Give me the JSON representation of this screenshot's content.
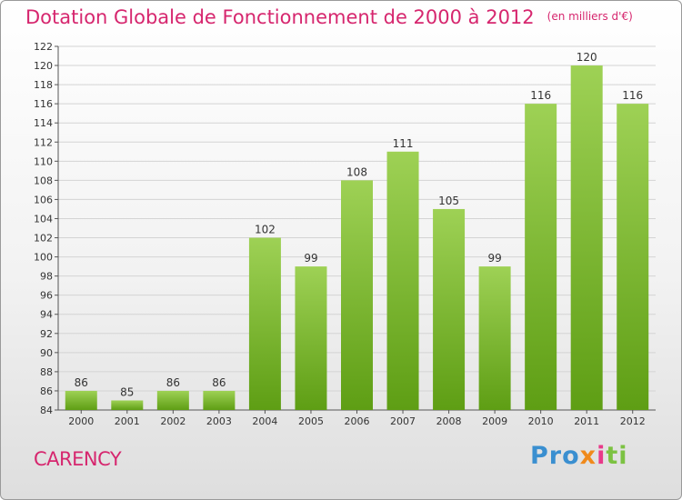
{
  "header": {
    "title": "Dotation Globale de Fonctionnement de 2000 à 2012",
    "unit": "(en milliers d'€)"
  },
  "footer": {
    "commune": "CARENCY",
    "logo": [
      "Pro",
      "x",
      "i",
      "ti"
    ]
  },
  "colors": {
    "title": "#d6266e",
    "bar_light": "#9ed155",
    "bar_dark": "#5e9e14",
    "logo_blue": "#3a8fd0",
    "logo_orange": "#f08a1c",
    "logo_pink": "#e83a8a",
    "logo_green": "#7cc242"
  },
  "chart_data": {
    "type": "bar",
    "title": "Dotation Globale de Fonctionnement de 2000 à 2012",
    "subtitle": "(en milliers d'€)",
    "xlabel": "",
    "ylabel": "",
    "categories": [
      "2000",
      "2001",
      "2002",
      "2003",
      "2004",
      "2005",
      "2006",
      "2007",
      "2008",
      "2009",
      "2010",
      "2011",
      "2012"
    ],
    "values": [
      86,
      85,
      86,
      86,
      102,
      99,
      108,
      111,
      105,
      99,
      116,
      120,
      116
    ],
    "ylim": [
      84,
      122
    ],
    "yticks": [
      84,
      86,
      88,
      90,
      92,
      94,
      96,
      98,
      100,
      102,
      104,
      106,
      108,
      110,
      112,
      114,
      116,
      118,
      120,
      122
    ],
    "grid": true,
    "legend": "none"
  }
}
